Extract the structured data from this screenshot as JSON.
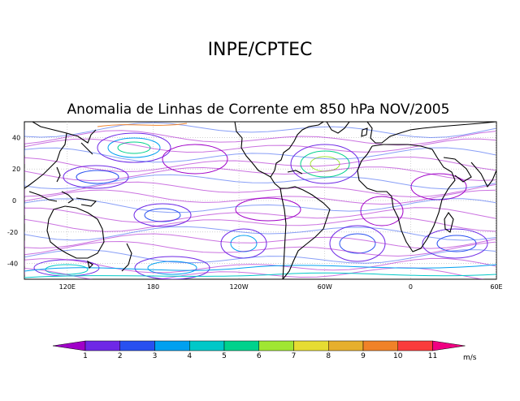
{
  "header": {
    "org": "INPE/CPTEC",
    "title": "Anomalia de Linhas de Corrente em 850 hPa NOV/2005"
  },
  "map": {
    "lat_labels": [
      "40",
      "20",
      "0",
      "-20",
      "-40"
    ],
    "lon_labels": [
      "120E",
      "180",
      "120W",
      "60W",
      "0",
      "60E"
    ],
    "lat_range": [
      -50,
      50
    ],
    "lon_range": [
      90,
      420
    ],
    "grid": true
  },
  "colorbar": {
    "labels": [
      "1",
      "2",
      "3",
      "4",
      "5",
      "6",
      "7",
      "8",
      "9",
      "10",
      "11"
    ],
    "units": "m/s",
    "colors": [
      "#a000c8",
      "#6e28e6",
      "#2850f0",
      "#00a0f0",
      "#00c8c8",
      "#00d28c",
      "#a0e632",
      "#e6dc32",
      "#e6af2d",
      "#f08228",
      "#fa3c3c",
      "#f00082"
    ]
  }
}
